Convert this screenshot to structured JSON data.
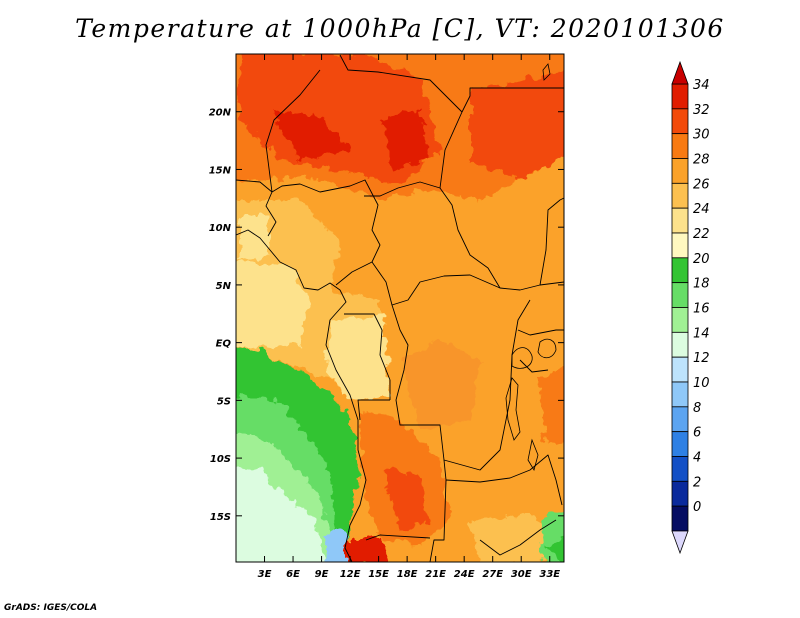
{
  "title": "Temperature at 1000hPa [C], VT: 2020101306",
  "credit": "GrADS: IGES/COLA",
  "map": {
    "lon_range": [
      0,
      34.5
    ],
    "lat_range": [
      -19,
      25
    ],
    "lon_ticks": [
      "3E",
      "6E",
      "9E",
      "12E",
      "15E",
      "18E",
      "21E",
      "24E",
      "27E",
      "30E",
      "33E"
    ],
    "lat_ticks": [
      "20N",
      "15N",
      "10N",
      "5N",
      "EQ",
      "5S",
      "10S",
      "15S"
    ]
  },
  "colorbar": {
    "labels": [
      "34",
      "32",
      "30",
      "28",
      "26",
      "24",
      "22",
      "20",
      "18",
      "16",
      "14",
      "12",
      "10",
      "8",
      "6",
      "4",
      "2",
      "0"
    ],
    "colors": [
      "#e11d00",
      "#f24a0a",
      "#f87a12",
      "#fba22a",
      "#fcc050",
      "#fde28c",
      "#fff8c0",
      "#33c433",
      "#66dd66",
      "#a0f094",
      "#dcfce0",
      "#bde3fc",
      "#8fc8f8",
      "#5ca4f0",
      "#2e80e4",
      "#1350c6",
      "#0a2a9c",
      "#050d62"
    ],
    "over_color": "#c80000",
    "under_color": "#dcd8fc"
  }
}
